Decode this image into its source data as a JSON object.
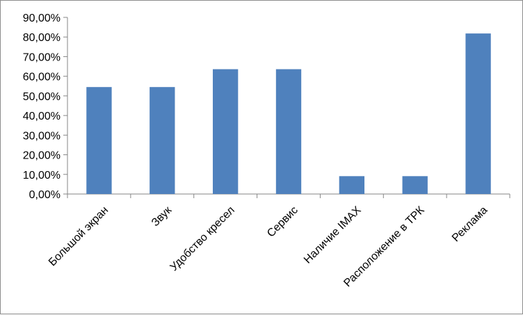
{
  "chart_data": {
    "type": "bar",
    "categories": [
      "Большой экран",
      "Звук",
      "Удобство кресел",
      "Сервис",
      "Наличие IMAX",
      "Расположение в ТРК",
      "Реклама"
    ],
    "values": [
      54.5,
      54.5,
      63.6,
      63.6,
      9.1,
      9.1,
      81.8
    ],
    "y_tick_labels": [
      "0,00%",
      "10,00%",
      "20,00%",
      "30,00%",
      "40,00%",
      "50,00%",
      "60,00%",
      "70,00%",
      "80,00%",
      "90,00%"
    ],
    "ylim": [
      0,
      90
    ],
    "y_tick_step": 10,
    "grid": false,
    "legend": "none",
    "bar_color": "#4f81bd",
    "axis_color": "#868686"
  }
}
